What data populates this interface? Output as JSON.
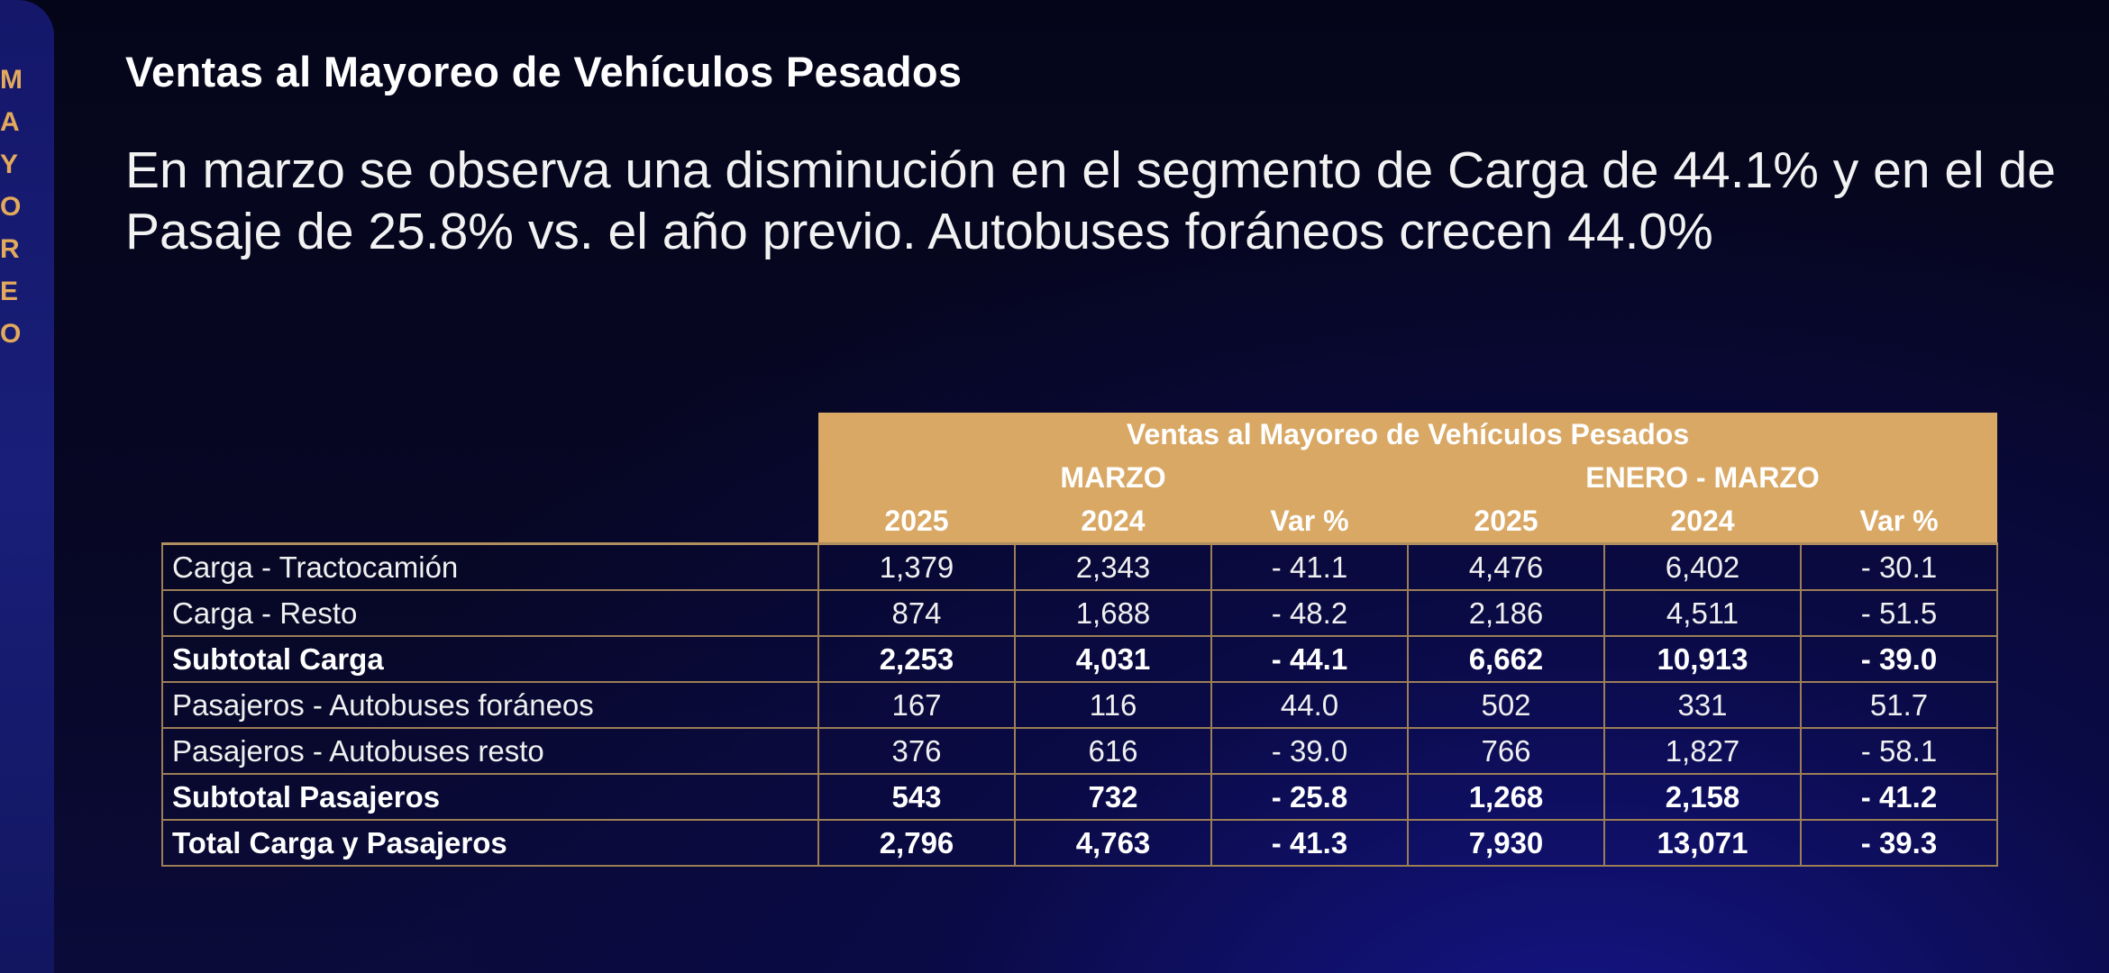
{
  "sidebar": {
    "letters": [
      "M",
      "A",
      "Y",
      "O",
      "R",
      "E",
      "O"
    ]
  },
  "slide": {
    "title": "Ventas al Mayoreo de Vehículos Pesados",
    "paragraph": "En marzo se observa una disminución en el segmento de Carga de 44.1% y en el de Pasaje de 25.8% vs. el año previo. Autobuses foráneos crecen 44.0%"
  },
  "table": {
    "title": "Ventas al Mayoreo de Vehículos Pesados",
    "group_labels": [
      "MARZO",
      "ENERO - MARZO"
    ],
    "columns": [
      "2025",
      "2024",
      "Var %",
      "2025",
      "2024",
      "Var %"
    ],
    "rows": [
      {
        "label": "Carga - Tractocamión",
        "bold": false,
        "values": [
          "1,379",
          "2,343",
          "- 41.1",
          "4,476",
          "6,402",
          "- 30.1"
        ]
      },
      {
        "label": "Carga - Resto",
        "bold": false,
        "values": [
          "874",
          "1,688",
          "- 48.2",
          "2,186",
          "4,511",
          "- 51.5"
        ]
      },
      {
        "label": "Subtotal Carga",
        "bold": true,
        "values": [
          "2,253",
          "4,031",
          "- 44.1",
          "6,662",
          "10,913",
          "- 39.0"
        ]
      },
      {
        "label": "Pasajeros - Autobuses foráneos",
        "bold": false,
        "values": [
          "167",
          "116",
          "44.0",
          "502",
          "331",
          "51.7"
        ]
      },
      {
        "label": "Pasajeros - Autobuses resto",
        "bold": false,
        "values": [
          "376",
          "616",
          "- 39.0",
          "766",
          "1,827",
          "- 58.1"
        ]
      },
      {
        "label": "Subtotal Pasajeros",
        "bold": true,
        "values": [
          "543",
          "732",
          "- 25.8",
          "1,268",
          "2,158",
          "- 41.2"
        ]
      },
      {
        "label": "Total Carga y Pasajeros",
        "bold": true,
        "values": [
          "2,796",
          "4,763",
          "- 41.3",
          "7,930",
          "13,071",
          "- 39.3"
        ]
      }
    ]
  },
  "colors": {
    "accent": "#d9a865",
    "sidebar_letters": "#e3a95c",
    "border": "#9c7e55"
  }
}
